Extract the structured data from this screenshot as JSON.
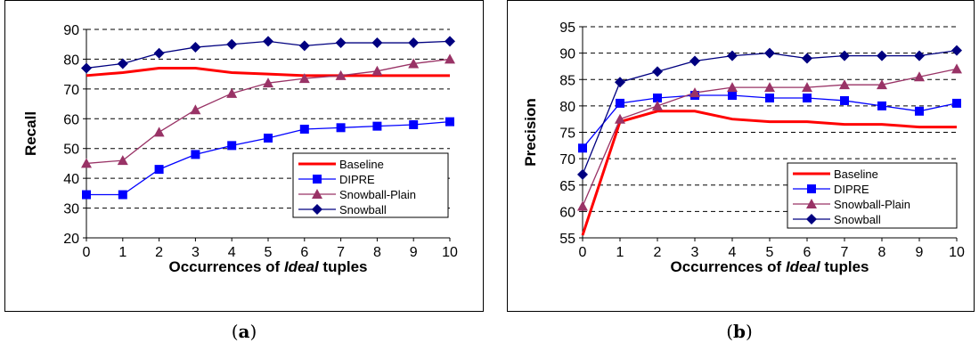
{
  "chart_data": [
    {
      "type": "line",
      "panel_label": "a",
      "xlabel_prefix": "Occurrences of ",
      "xlabel_italic": "Ideal",
      "xlabel_suffix": " tuples",
      "ylabel": "Recall",
      "x": [
        0,
        1,
        2,
        3,
        4,
        5,
        6,
        7,
        8,
        9,
        10
      ],
      "ylim": [
        20,
        90
      ],
      "yticks": [
        20,
        30,
        40,
        50,
        60,
        70,
        80,
        90
      ],
      "grid": true,
      "legend_position": "bottom-right",
      "series": [
        {
          "name": "Baseline",
          "color": "#ff0000",
          "marker": "none",
          "values": [
            74.5,
            75.5,
            77,
            77,
            75.5,
            75,
            74.5,
            74.5,
            74.5,
            74.5,
            74.5
          ]
        },
        {
          "name": "DIPRE",
          "color": "#0000ff",
          "marker": "square",
          "values": [
            34.5,
            34.5,
            43,
            48,
            51,
            53.5,
            56.5,
            57,
            57.5,
            58,
            59
          ]
        },
        {
          "name": "Snowball-Plain",
          "color": "#993366",
          "marker": "triangle",
          "values": [
            45,
            46,
            55.5,
            63,
            68.5,
            72,
            73.5,
            74.5,
            76,
            78.5,
            80
          ]
        },
        {
          "name": "Snowball",
          "color": "#000080",
          "marker": "diamond",
          "values": [
            77,
            78.5,
            82,
            84,
            85,
            86,
            84.5,
            85.5,
            85.5,
            85.5,
            86
          ]
        }
      ]
    },
    {
      "type": "line",
      "panel_label": "b",
      "xlabel_prefix": "Occurrences of ",
      "xlabel_italic": "Ideal",
      "xlabel_suffix": " tuples",
      "ylabel": "Precision",
      "x": [
        0,
        1,
        2,
        3,
        4,
        5,
        6,
        7,
        8,
        9,
        10
      ],
      "ylim": [
        55,
        95
      ],
      "yticks": [
        55,
        60,
        65,
        70,
        75,
        80,
        85,
        90,
        95
      ],
      "grid": true,
      "legend_position": "bottom-right",
      "series": [
        {
          "name": "Baseline",
          "color": "#ff0000",
          "marker": "none",
          "values": [
            55.5,
            77,
            79,
            79,
            77.5,
            77,
            77,
            76.5,
            76.5,
            76,
            76
          ]
        },
        {
          "name": "DIPRE",
          "color": "#0000ff",
          "marker": "square",
          "values": [
            72,
            80.5,
            81.5,
            82,
            82,
            81.5,
            81.5,
            81,
            80,
            79,
            80.5
          ]
        },
        {
          "name": "Snowball-Plain",
          "color": "#993366",
          "marker": "triangle",
          "values": [
            61,
            77.5,
            80,
            82.5,
            83.5,
            83.5,
            83.5,
            84,
            84,
            85.5,
            87
          ]
        },
        {
          "name": "Snowball",
          "color": "#000080",
          "marker": "diamond",
          "values": [
            67,
            84.5,
            86.5,
            88.5,
            89.5,
            90,
            89,
            89.5,
            89.5,
            89.5,
            90.5
          ]
        }
      ]
    }
  ]
}
